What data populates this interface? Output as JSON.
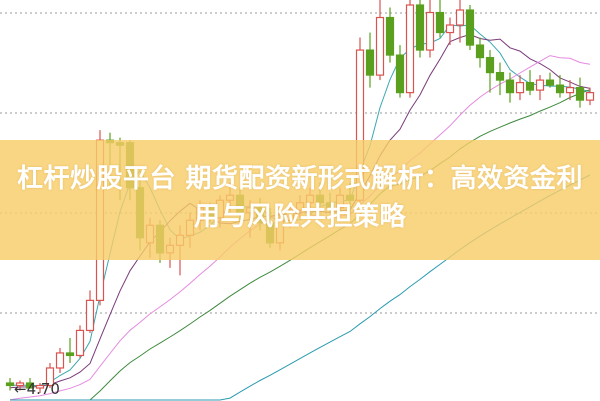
{
  "title": "杠杆炒股平台 期货配资新形式解析：高效资金利用与风险共担策略",
  "chart_data": {
    "type": "candlestick",
    "price_label": "4.70",
    "price_label_arrow": "←",
    "ylim": [
      4.65,
      6.25
    ],
    "grid": "dotted horizontal",
    "colors": {
      "up": "#d9534f",
      "down": "#5aa01e",
      "banner": "#f8cd69",
      "ma_lines": [
        "#3aa8b0",
        "#7a3a7a",
        "#e58ae0",
        "#3d8a3d",
        "#2a9bb0"
      ]
    },
    "candles": [
      [
        4.72,
        4.74,
        4.69,
        4.71
      ],
      [
        4.71,
        4.73,
        4.69,
        4.72
      ],
      [
        4.72,
        4.74,
        4.7,
        4.7
      ],
      [
        4.7,
        4.72,
        4.68,
        4.71
      ],
      [
        4.71,
        4.8,
        4.7,
        4.78
      ],
      [
        4.78,
        4.86,
        4.76,
        4.84
      ],
      [
        4.84,
        4.9,
        4.8,
        4.83
      ],
      [
        4.83,
        4.95,
        4.82,
        4.93
      ],
      [
        4.93,
        5.09,
        4.92,
        5.05
      ],
      [
        5.05,
        5.73,
        5.03,
        5.69
      ],
      [
        5.69,
        5.72,
        5.5,
        5.68
      ],
      [
        5.68,
        5.7,
        5.45,
        5.67
      ],
      [
        5.68,
        5.69,
        5.45,
        5.5
      ],
      [
        5.5,
        5.55,
        5.25,
        5.3
      ],
      [
        5.28,
        5.38,
        5.22,
        5.35
      ],
      [
        5.35,
        5.37,
        5.2,
        5.24
      ],
      [
        5.24,
        5.3,
        5.18,
        5.27
      ],
      [
        5.27,
        5.35,
        5.15,
        5.31
      ],
      [
        5.31,
        5.4,
        5.26,
        5.37
      ],
      [
        5.37,
        5.45,
        5.33,
        5.42
      ],
      [
        5.42,
        5.44,
        5.36,
        5.38
      ],
      [
        5.38,
        5.47,
        5.34,
        5.45
      ],
      [
        5.45,
        5.52,
        5.4,
        5.47
      ],
      [
        5.47,
        5.5,
        5.37,
        5.4
      ],
      [
        5.4,
        5.45,
        5.3,
        5.42
      ],
      [
        5.42,
        5.46,
        5.33,
        5.36
      ],
      [
        5.36,
        5.42,
        5.26,
        5.28
      ],
      [
        5.28,
        5.4,
        5.25,
        5.37
      ],
      [
        5.37,
        5.44,
        5.34,
        5.41
      ],
      [
        5.41,
        5.47,
        5.38,
        5.44
      ],
      [
        5.44,
        5.5,
        5.4,
        5.47
      ],
      [
        5.47,
        5.52,
        5.43,
        5.44
      ],
      [
        5.44,
        5.48,
        5.4,
        5.42
      ],
      [
        5.42,
        5.5,
        5.4,
        5.47
      ],
      [
        5.47,
        5.52,
        5.4,
        5.45
      ],
      [
        5.45,
        6.1,
        5.44,
        6.05
      ],
      [
        6.05,
        6.12,
        5.9,
        5.95
      ],
      [
        5.95,
        6.25,
        5.93,
        6.18
      ],
      [
        6.18,
        6.22,
        6.0,
        6.03
      ],
      [
        6.03,
        6.07,
        5.86,
        5.88
      ],
      [
        5.88,
        6.25,
        5.86,
        6.23
      ],
      [
        6.23,
        6.25,
        6.02,
        6.05
      ],
      [
        6.05,
        6.25,
        6.02,
        6.2
      ],
      [
        6.2,
        6.25,
        6.1,
        6.12
      ],
      [
        6.12,
        6.18,
        6.07,
        6.15
      ],
      [
        6.15,
        6.25,
        6.08,
        6.21
      ],
      [
        6.21,
        6.23,
        6.05,
        6.07
      ],
      [
        6.07,
        6.1,
        5.98,
        6.02
      ],
      [
        6.02,
        6.05,
        5.88,
        5.96
      ],
      [
        5.96,
        6.0,
        5.87,
        5.93
      ],
      [
        5.93,
        5.96,
        5.84,
        5.88
      ],
      [
        5.88,
        5.95,
        5.85,
        5.92
      ],
      [
        5.92,
        5.97,
        5.87,
        5.89
      ],
      [
        5.89,
        5.95,
        5.85,
        5.93
      ],
      [
        5.93,
        5.96,
        5.9,
        5.91
      ],
      [
        5.91,
        5.95,
        5.86,
        5.88
      ],
      [
        5.88,
        5.93,
        5.85,
        5.9
      ],
      [
        5.9,
        5.94,
        5.82,
        5.85
      ],
      [
        5.85,
        5.9,
        5.83,
        5.88
      ]
    ]
  }
}
